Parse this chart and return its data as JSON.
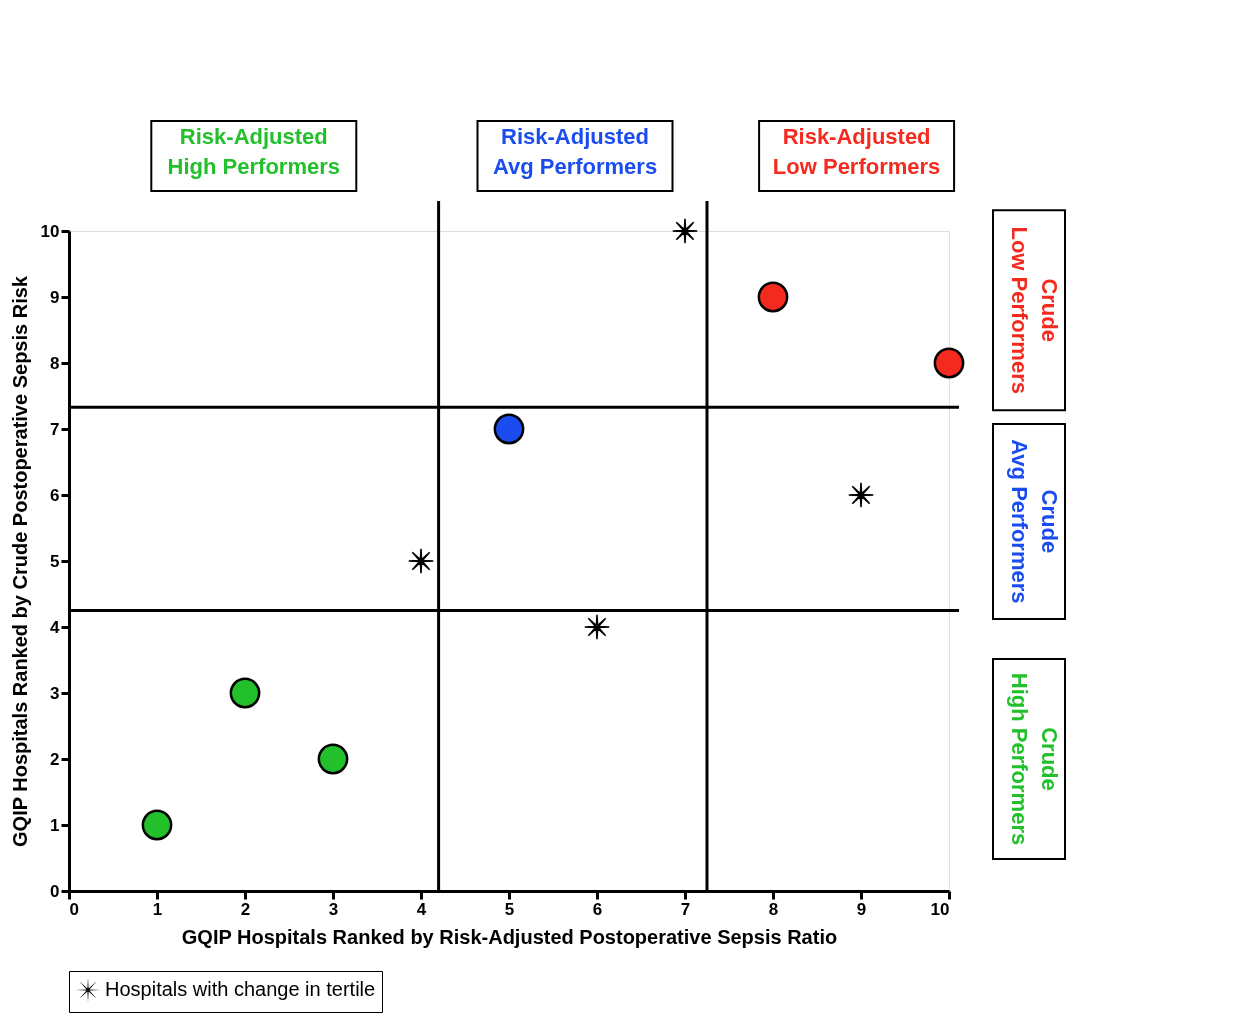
{
  "chart_data": {
    "type": "scatter",
    "xlabel": "GQIP Hospitals Ranked by Risk-Adjusted Postoperative Sepsis Ratio",
    "ylabel": "GQIP Hospitals Ranked by Crude Postoperative Sepsis Risk",
    "xlim": [
      0,
      10
    ],
    "ylim": [
      0,
      10
    ],
    "xticks": [
      0,
      1,
      2,
      3,
      4,
      5,
      6,
      7,
      8,
      9,
      10
    ],
    "yticks": [
      0,
      1,
      2,
      3,
      4,
      5,
      6,
      7,
      8,
      9,
      10
    ],
    "grid": false,
    "legend": "bottom left",
    "marker": "circle",
    "series": [
      {
        "color": "#22c02a",
        "x": [
          1,
          2,
          3
        ],
        "values": [
          1,
          3,
          2
        ]
      },
      {
        "color": "#1a4cf0",
        "x": [
          5
        ],
        "values": [
          7
        ]
      },
      {
        "color": "#f52a1f",
        "x": [
          8,
          10
        ],
        "values": [
          9,
          8
        ]
      },
      {
        "name": "Hospitals with change in tertile",
        "color": "#000000",
        "marker": "cross",
        "x": [
          4,
          6,
          7,
          9
        ],
        "values": [
          5,
          4,
          10,
          6
        ]
      }
    ],
    "ref_lines": [
      {
        "axis": "x",
        "value": 4.2
      },
      {
        "axis": "x",
        "value": 7.25
      },
      {
        "axis": "y",
        "value": 4.25
      },
      {
        "axis": "y",
        "value": 7.33
      }
    ],
    "annotations": [
      "Risk-Adjusted\nHigh Performers",
      "Risk-Adjusted\nAvg Performers",
      "Risk-Adjusted\nLow Performers",
      "Crude\nLow Performers",
      "Crude\nAvg Performers",
      "Crude\nHigh Performers"
    ]
  }
}
